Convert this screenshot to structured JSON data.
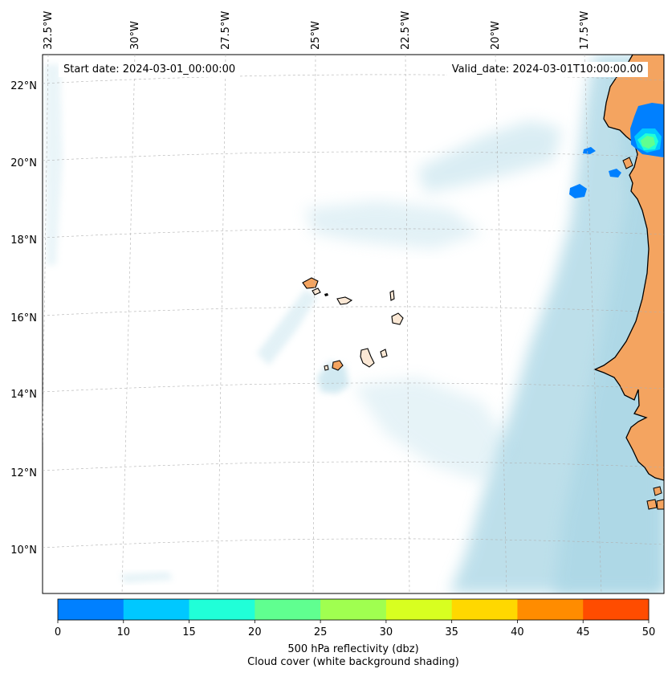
{
  "map": {
    "start_label": "Start date: 2024-03-01_00:00:00",
    "valid_label": "Valid_date: 2024-03-01T10:00:00.00",
    "lon_ticks": [
      "32.5°W",
      "30°W",
      "27.5°W",
      "25°W",
      "22.5°W",
      "20°W",
      "17.5°W"
    ],
    "lat_ticks": [
      "22°N",
      "20°N",
      "18°N",
      "16°N",
      "14°N",
      "12°N",
      "10°N"
    ],
    "colors": {
      "land": "#f4a460",
      "cloud": "#add8e6",
      "coast": "#000000",
      "grid": "#b0b0b0"
    }
  },
  "colorbar": {
    "ticks": [
      "0",
      "10",
      "15",
      "20",
      "25",
      "30",
      "35",
      "40",
      "45",
      "50"
    ],
    "colors": [
      "#0080ff",
      "#00c8ff",
      "#20ffd8",
      "#60ff90",
      "#a0ff50",
      "#d8ff20",
      "#ffd800",
      "#ff8c00",
      "#ff4c00"
    ],
    "label_line1": "500 hPa reflectivity (dbz)",
    "label_line2": "Cloud cover (white background shading)"
  }
}
